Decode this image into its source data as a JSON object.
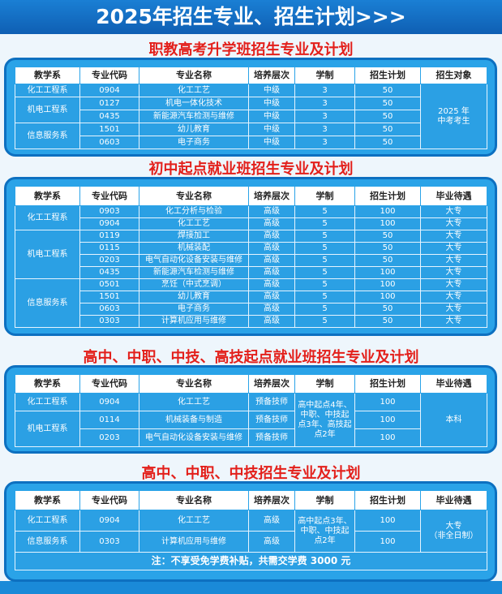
{
  "header": {
    "title": "2025年招生专业、招生计划>>>"
  },
  "sections": [
    {
      "title": "职教高考升学班招生专业及计划",
      "headers": [
        "教学系",
        "专业代码",
        "专业名称",
        "培养层次",
        "学制",
        "招生计划",
        "招生对象"
      ],
      "rows": [
        [
          "化工工程系",
          "0904",
          "化工工艺",
          "中级",
          3,
          50,
          [
            "2025 年",
            "中考考生"
          ]
        ],
        [
          "机电工程系",
          "0127",
          "机电一体化技术",
          "中级",
          3,
          50,
          null
        ],
        [
          null,
          "0435",
          "新能源汽车检测与维修",
          "中级",
          3,
          50,
          null
        ],
        [
          "信息服务系",
          "1501",
          "幼儿教育",
          "中级",
          3,
          50,
          null
        ],
        [
          null,
          "0603",
          "电子商务",
          "中级",
          3,
          50,
          null
        ]
      ]
    },
    {
      "title": "初中起点就业班招生专业及计划",
      "headers": [
        "教学系",
        "专业代码",
        "专业名称",
        "培养层次",
        "学制",
        "招生计划",
        "毕业待遇"
      ],
      "rows": [
        [
          "化工工程系",
          "0903",
          "化工分析与检验",
          "高级",
          5,
          100,
          "大专"
        ],
        [
          null,
          "0904",
          "化工工艺",
          "高级",
          5,
          100,
          "大专"
        ],
        [
          "机电工程系",
          "0119",
          "焊接加工",
          "高级",
          5,
          50,
          "大专"
        ],
        [
          null,
          "0115",
          "机械装配",
          "高级",
          5,
          50,
          "大专"
        ],
        [
          null,
          "0203",
          "电气自动化设备安装与维修",
          "高级",
          5,
          50,
          "大专"
        ],
        [
          null,
          "0435",
          "新能源汽车检测与维修",
          "高级",
          5,
          100,
          "大专"
        ],
        [
          "信息服务系",
          "0501",
          "烹饪（中式烹调）",
          "高级",
          5,
          100,
          "大专"
        ],
        [
          null,
          "1501",
          "幼儿教育",
          "高级",
          5,
          100,
          "大专"
        ],
        [
          null,
          "0603",
          "电子商务",
          "高级",
          5,
          50,
          "大专"
        ],
        [
          null,
          "0303",
          "计算机应用与维修",
          "高级",
          5,
          50,
          "大专"
        ]
      ]
    },
    {
      "title": "高中、中职、中技、高技起点就业班招生专业及计划",
      "headers": [
        "教学系",
        "专业代码",
        "专业名称",
        "培养层次",
        "学制",
        "招生计划",
        "毕业待遇"
      ],
      "rows": [
        [
          "化工工程系",
          "0904",
          "化工工艺",
          "预备技师",
          "高中起点4年、中职、中技起点3年、高技起点2年",
          100,
          "本科"
        ],
        [
          "机电工程系",
          "0114",
          "机械装备与制造",
          "预备技师",
          null,
          100,
          null
        ],
        [
          null,
          "0203",
          "电气自动化设备安装与维修",
          "预备技师",
          null,
          100,
          null
        ]
      ]
    },
    {
      "title": "高中、中职、中技招生专业及计划",
      "headers": [
        "教学系",
        "专业代码",
        "专业名称",
        "培养层次",
        "学制",
        "招生计划",
        "毕业待遇"
      ],
      "rows": [
        [
          "化工工程系",
          "0904",
          "化工工艺",
          "高级",
          "高中起点3年、中职、中技起点2年",
          100,
          [
            "大专",
            "（非全日制）"
          ]
        ],
        [
          "信息服务系",
          "0303",
          "计算机应用与维修",
          "高级",
          null,
          100,
          null
        ]
      ],
      "note": "注：不享受免学费补贴，共需交学费 3000 元"
    }
  ]
}
